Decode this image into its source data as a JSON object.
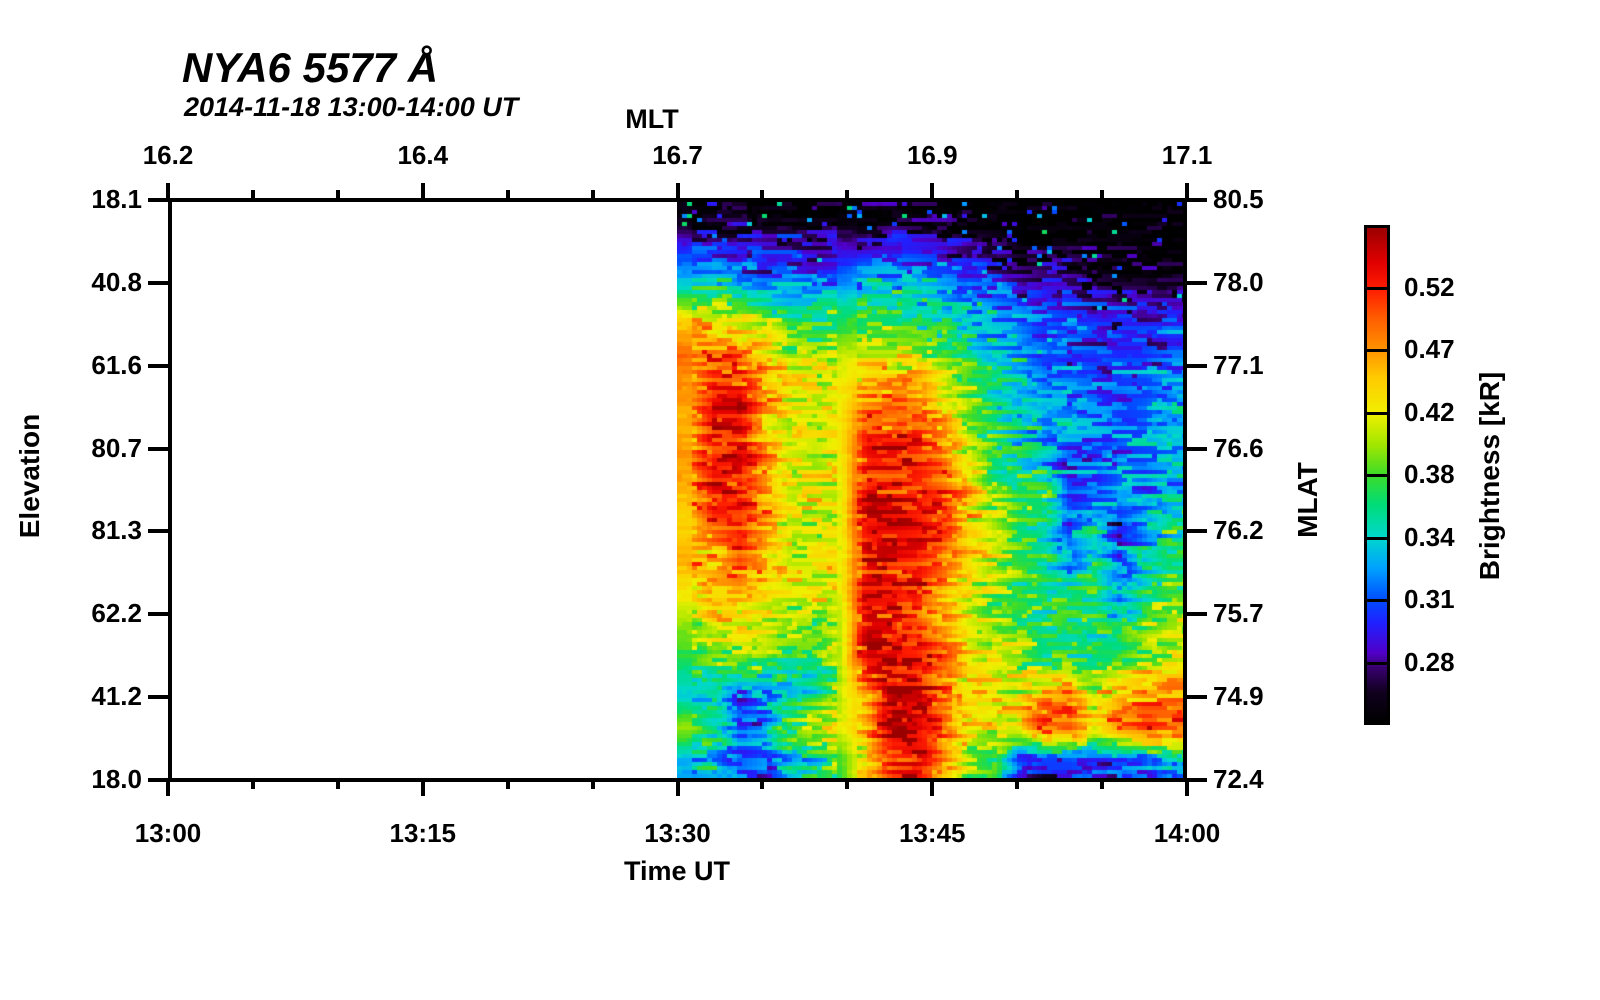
{
  "title": "NYA6 5577 Å",
  "subtitle": "2014-11-18 13:00-14:00 UT",
  "axes": {
    "top": {
      "label": "MLT",
      "ticks": [
        "16.2",
        "16.4",
        "16.7",
        "16.9",
        "17.1"
      ]
    },
    "bottom": {
      "label": "Time UT",
      "ticks": [
        "13:00",
        "13:15",
        "13:30",
        "13:45",
        "14:00"
      ]
    },
    "left": {
      "label": "Elevation",
      "ticks": [
        "18.1",
        "40.8",
        "61.6",
        "80.7",
        "81.3",
        "62.2",
        "41.2",
        "18.0"
      ]
    },
    "right": {
      "label": "MLAT",
      "ticks": [
        "80.5",
        "78.0",
        "77.1",
        "76.6",
        "76.2",
        "75.7",
        "74.9",
        "72.4"
      ]
    }
  },
  "colorbar": {
    "label": "Brightness [kR]",
    "tick_labels": [
      "0.52",
      "0.47",
      "0.42",
      "0.38",
      "0.34",
      "0.31",
      "0.28"
    ],
    "scale": "log",
    "range_kR": [
      0.252,
      0.578
    ],
    "stops": [
      [
        0,
        "#000000"
      ],
      [
        0.06,
        "#10001e"
      ],
      [
        0.11,
        "#38006e"
      ],
      [
        0.14,
        "#5000c8"
      ],
      [
        0.2,
        "#2020ff"
      ],
      [
        0.25,
        "#0050ff"
      ],
      [
        0.31,
        "#00a0ff"
      ],
      [
        0.375,
        "#00d8cc"
      ],
      [
        0.44,
        "#00dc78"
      ],
      [
        0.5,
        "#3cdc28"
      ],
      [
        0.56,
        "#a0e600"
      ],
      [
        0.625,
        "#f0f000"
      ],
      [
        0.7,
        "#ffc800"
      ],
      [
        0.75,
        "#ff9600"
      ],
      [
        0.82,
        "#ff5a00"
      ],
      [
        0.875,
        "#ff1e00"
      ],
      [
        0.93,
        "#e10000"
      ],
      [
        1,
        "#9b0000"
      ]
    ]
  },
  "chart_data": {
    "type": "heatmap",
    "title": "NYA6 5577 Å",
    "subtitle": "2014-11-18 13:00-14:00 UT",
    "station": "NYA6",
    "wavelength_angstrom": 5577,
    "xlabel": "Time UT",
    "xlabel_top": "MLT",
    "ylabel_left": "Elevation",
    "ylabel_right": "MLAT",
    "x_range_time": [
      "13:00",
      "14:00"
    ],
    "x_ticks_time": [
      "13:00",
      "13:15",
      "13:30",
      "13:45",
      "14:00"
    ],
    "x_ticks_mlt": [
      16.2,
      16.4,
      16.7,
      16.9,
      17.1
    ],
    "y_ticks_elevation": [
      18.1,
      40.8,
      61.6,
      80.7,
      81.3,
      62.2,
      41.2,
      18.0
    ],
    "y_ticks_mlat": [
      80.5,
      78.0,
      77.1,
      76.6,
      76.2,
      75.7,
      74.9,
      72.4
    ],
    "value_label": "Brightness [kR]",
    "value_scale": "log",
    "value_ticks_kR": [
      0.28,
      0.31,
      0.34,
      0.38,
      0.42,
      0.47,
      0.52
    ],
    "no_data_interval": [
      "13:00",
      "13:30"
    ],
    "data_interval": [
      "13:30",
      "14:00"
    ],
    "grid_orientation": "17 rows from top (MLAT 80.5, elev 18.1) to bottom (MLAT 72.4, elev 18.0); 20 columns from 13:30 to 14:00 UT; values are brightness in kR",
    "grid_kR": [
      [
        0.26,
        0.26,
        0.26,
        0.255,
        0.255,
        0.255,
        0.255,
        0.255,
        0.26,
        0.255,
        0.255,
        0.25,
        0.25,
        0.248,
        0.248,
        0.248,
        0.248,
        0.248,
        0.248,
        0.248
      ],
      [
        0.3,
        0.3,
        0.295,
        0.29,
        0.29,
        0.285,
        0.29,
        0.295,
        0.3,
        0.295,
        0.29,
        0.28,
        0.27,
        0.26,
        0.258,
        0.255,
        0.252,
        0.25,
        0.25,
        0.25
      ],
      [
        0.345,
        0.35,
        0.34,
        0.33,
        0.33,
        0.325,
        0.33,
        0.34,
        0.345,
        0.34,
        0.33,
        0.32,
        0.31,
        0.295,
        0.285,
        0.28,
        0.275,
        0.27,
        0.268,
        0.265
      ],
      [
        0.44,
        0.43,
        0.42,
        0.4,
        0.375,
        0.37,
        0.37,
        0.38,
        0.38,
        0.375,
        0.37,
        0.345,
        0.33,
        0.325,
        0.31,
        0.3,
        0.295,
        0.29,
        0.29,
        0.295
      ],
      [
        0.49,
        0.5,
        0.49,
        0.45,
        0.41,
        0.4,
        0.41,
        0.42,
        0.42,
        0.41,
        0.385,
        0.36,
        0.345,
        0.335,
        0.315,
        0.31,
        0.305,
        0.3,
        0.3,
        0.31
      ],
      [
        0.47,
        0.52,
        0.52,
        0.46,
        0.42,
        0.42,
        0.43,
        0.46,
        0.48,
        0.47,
        0.42,
        0.385,
        0.36,
        0.345,
        0.32,
        0.315,
        0.31,
        0.305,
        0.31,
        0.32
      ],
      [
        0.46,
        0.53,
        0.53,
        0.45,
        0.42,
        0.42,
        0.43,
        0.5,
        0.51,
        0.5,
        0.46,
        0.4,
        0.37,
        0.345,
        0.33,
        0.33,
        0.325,
        0.31,
        0.315,
        0.33
      ],
      [
        0.47,
        0.54,
        0.53,
        0.46,
        0.42,
        0.41,
        0.43,
        0.52,
        0.53,
        0.52,
        0.49,
        0.42,
        0.375,
        0.36,
        0.335,
        0.305,
        0.305,
        0.325,
        0.33,
        0.335
      ],
      [
        0.46,
        0.53,
        0.52,
        0.47,
        0.42,
        0.42,
        0.42,
        0.54,
        0.54,
        0.53,
        0.51,
        0.46,
        0.4,
        0.37,
        0.37,
        0.305,
        0.31,
        0.33,
        0.315,
        0.34
      ],
      [
        0.44,
        0.5,
        0.51,
        0.46,
        0.42,
        0.42,
        0.42,
        0.55,
        0.55,
        0.54,
        0.51,
        0.45,
        0.41,
        0.37,
        0.36,
        0.305,
        0.33,
        0.3,
        0.33,
        0.36
      ],
      [
        0.46,
        0.46,
        0.5,
        0.46,
        0.42,
        0.42,
        0.42,
        0.53,
        0.54,
        0.53,
        0.5,
        0.45,
        0.41,
        0.38,
        0.37,
        0.33,
        0.36,
        0.31,
        0.34,
        0.37
      ],
      [
        0.43,
        0.46,
        0.46,
        0.43,
        0.42,
        0.42,
        0.42,
        0.545,
        0.54,
        0.52,
        0.47,
        0.43,
        0.4,
        0.38,
        0.37,
        0.36,
        0.37,
        0.32,
        0.36,
        0.39
      ],
      [
        0.4,
        0.43,
        0.43,
        0.42,
        0.4,
        0.38,
        0.41,
        0.53,
        0.53,
        0.51,
        0.46,
        0.42,
        0.4,
        0.375,
        0.37,
        0.365,
        0.37,
        0.36,
        0.39,
        0.41
      ],
      [
        0.37,
        0.39,
        0.4,
        0.38,
        0.355,
        0.37,
        0.41,
        0.55,
        0.555,
        0.55,
        0.5,
        0.44,
        0.41,
        0.4,
        0.38,
        0.37,
        0.37,
        0.375,
        0.4,
        0.41
      ],
      [
        0.34,
        0.35,
        0.31,
        0.33,
        0.34,
        0.36,
        0.41,
        0.46,
        0.56,
        0.555,
        0.49,
        0.43,
        0.44,
        0.42,
        0.46,
        0.47,
        0.42,
        0.45,
        0.47,
        0.48
      ],
      [
        0.4,
        0.37,
        0.31,
        0.32,
        0.39,
        0.41,
        0.42,
        0.46,
        0.555,
        0.55,
        0.5,
        0.43,
        0.42,
        0.43,
        0.5,
        0.51,
        0.45,
        0.5,
        0.51,
        0.5
      ],
      [
        0.33,
        0.34,
        0.3,
        0.31,
        0.34,
        0.36,
        0.38,
        0.44,
        0.52,
        0.53,
        0.47,
        0.4,
        0.38,
        0.31,
        0.29,
        0.29,
        0.3,
        0.29,
        0.3,
        0.33
      ]
    ]
  }
}
